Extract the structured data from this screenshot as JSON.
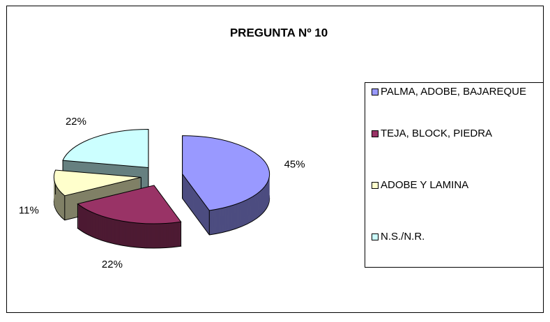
{
  "chart_data": {
    "type": "pie",
    "title": "PREGUNTA Nº 10",
    "categories": [
      "PALMA, ADOBE, BAJAREQUE",
      "TEJA, BLOCK, PIEDRA",
      "ADOBE Y LAMINA",
      "N.S./N.R."
    ],
    "values": [
      45,
      22,
      11,
      22
    ],
    "value_labels": [
      "45%",
      "22%",
      "11%",
      "22%"
    ],
    "colors": [
      "#9999ff",
      "#993366",
      "#ffffcc",
      "#ccffff"
    ],
    "legend": "right"
  }
}
